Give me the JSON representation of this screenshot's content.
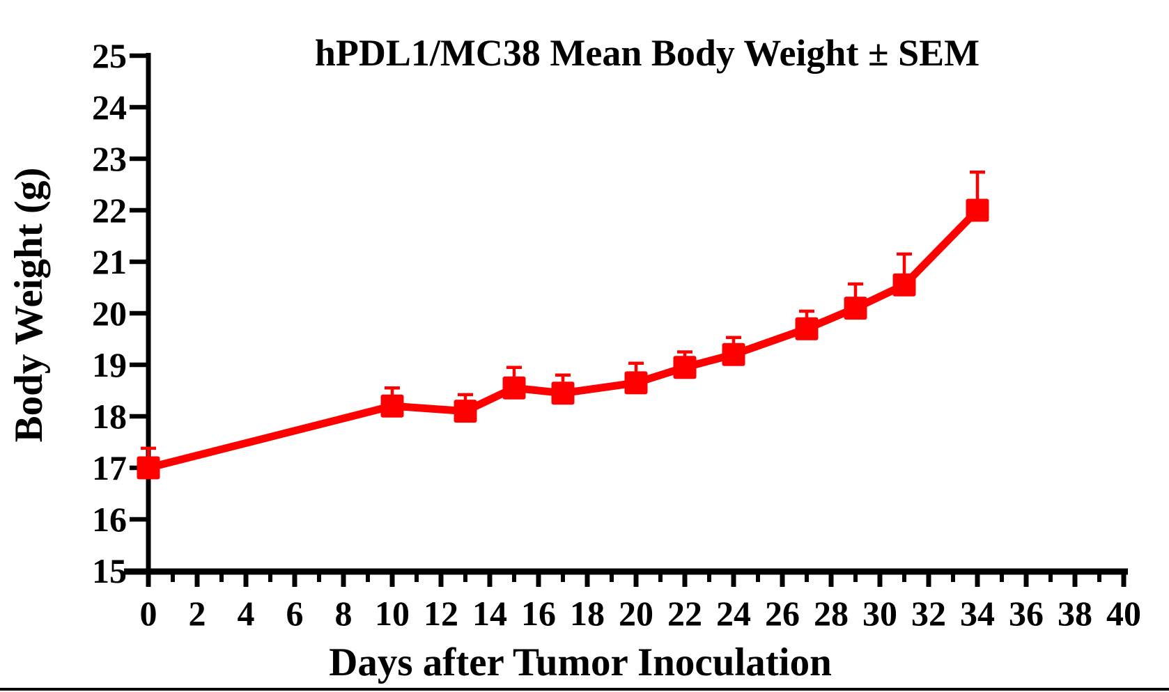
{
  "page": {
    "background": "#ffffff"
  },
  "chart_data": {
    "type": "line",
    "title": "hPDL1/MC38 Mean Body Weight ± SEM",
    "xlabel": "Days after Tumor Inoculation",
    "ylabel": "Body Weight (g)",
    "xlim": [
      0,
      40
    ],
    "ylim": [
      15,
      25
    ],
    "grid": false,
    "legend": "none",
    "axis_color": "#000000",
    "x_tick_labels": [
      0,
      2,
      4,
      6,
      8,
      10,
      12,
      14,
      16,
      18,
      20,
      22,
      24,
      26,
      28,
      30,
      32,
      34,
      36,
      38,
      40
    ],
    "x_minor_ticks": [
      1,
      3,
      5,
      7,
      9,
      11,
      13,
      15,
      17,
      19,
      21,
      23,
      25,
      27,
      29,
      31,
      33,
      35,
      37,
      39
    ],
    "y_tick_labels": [
      15,
      16,
      17,
      18,
      19,
      20,
      21,
      22,
      23,
      24,
      25
    ],
    "series": [
      {
        "name": "Mean Body Weight",
        "color": "#ff0000",
        "marker": "square",
        "error_bars": "upper SEM",
        "x": [
          0,
          10,
          13,
          15,
          17,
          20,
          22,
          24,
          27,
          29,
          31,
          34
        ],
        "y": [
          17.0,
          18.2,
          18.1,
          18.55,
          18.45,
          18.65,
          18.95,
          19.2,
          19.7,
          20.1,
          20.55,
          22.0
        ],
        "sem": [
          0.38,
          0.35,
          0.32,
          0.4,
          0.35,
          0.38,
          0.3,
          0.33,
          0.34,
          0.47,
          0.6,
          0.74
        ]
      }
    ]
  }
}
